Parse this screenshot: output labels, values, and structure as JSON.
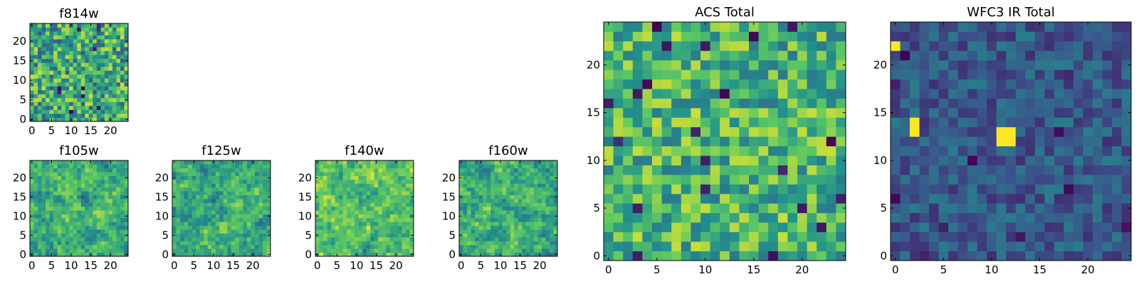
{
  "figure": {
    "colormap_colors": [
      "#440154",
      "#3b528b",
      "#21918c",
      "#5ec962",
      "#fde725"
    ]
  },
  "chart_data": [
    {
      "type": "heatmap",
      "title": "f814w",
      "xlim": [
        -0.5,
        24.5
      ],
      "ylim": [
        -0.5,
        24.5
      ],
      "xticks": [
        0,
        5,
        10,
        15,
        20
      ],
      "yticks": [
        0,
        5,
        10,
        15,
        20
      ],
      "grid": false,
      "values_description_free": true,
      "rows": 25,
      "cols": 25,
      "seed": 11,
      "mean": 0.6,
      "spread": 0.32,
      "smooth": 0
    },
    {
      "type": "heatmap",
      "title": "f105w",
      "xlim": [
        -0.5,
        24.5
      ],
      "ylim": [
        -0.5,
        24.5
      ],
      "xticks": [
        0,
        5,
        10,
        15,
        20
      ],
      "yticks": [
        0,
        5,
        10,
        15,
        20
      ],
      "grid": false,
      "rows": 25,
      "cols": 25,
      "seed": 23,
      "mean": 0.65,
      "spread": 0.3,
      "smooth": 1
    },
    {
      "type": "heatmap",
      "title": "f125w",
      "xlim": [
        -0.5,
        24.5
      ],
      "ylim": [
        -0.5,
        24.5
      ],
      "xticks": [
        0,
        5,
        10,
        15,
        20
      ],
      "yticks": [
        0,
        5,
        10,
        15,
        20
      ],
      "grid": false,
      "rows": 25,
      "cols": 25,
      "seed": 37,
      "mean": 0.62,
      "spread": 0.32,
      "smooth": 1
    },
    {
      "type": "heatmap",
      "title": "f140w",
      "xlim": [
        -0.5,
        24.5
      ],
      "ylim": [
        -0.5,
        24.5
      ],
      "xticks": [
        0,
        5,
        10,
        15,
        20
      ],
      "yticks": [
        0,
        5,
        10,
        15,
        20
      ],
      "grid": false,
      "rows": 25,
      "cols": 25,
      "seed": 41,
      "mean": 0.72,
      "spread": 0.28,
      "smooth": 1
    },
    {
      "type": "heatmap",
      "title": "f160w",
      "xlim": [
        -0.5,
        24.5
      ],
      "ylim": [
        -0.5,
        24.5
      ],
      "xticks": [
        0,
        5,
        10,
        15,
        20
      ],
      "yticks": [
        0,
        5,
        10,
        15,
        20
      ],
      "grid": false,
      "rows": 25,
      "cols": 25,
      "seed": 53,
      "mean": 0.64,
      "spread": 0.32,
      "smooth": 1
    },
    {
      "type": "heatmap",
      "title": "ACS Total",
      "xlim": [
        -0.5,
        24.5
      ],
      "ylim": [
        -0.5,
        24.5
      ],
      "xticks": [
        0,
        5,
        10,
        15,
        20
      ],
      "yticks": [
        0,
        5,
        10,
        15,
        20
      ],
      "grid": false,
      "rows": 25,
      "cols": 25,
      "seed": 67,
      "mean": 0.66,
      "spread": 0.26,
      "smooth": 0
    },
    {
      "type": "heatmap",
      "title": "WFC3 IR Total",
      "xlim": [
        -0.5,
        24.5
      ],
      "ylim": [
        -0.5,
        24.5
      ],
      "xticks": [
        0,
        5,
        10,
        15,
        20
      ],
      "yticks": [
        0,
        5,
        10,
        15,
        20
      ],
      "grid": false,
      "rows": 25,
      "cols": 25,
      "seed": 79,
      "mean": 0.28,
      "spread": 0.14,
      "smooth": 0,
      "hotspots": [
        {
          "col": 0,
          "row": 22,
          "value": 1.0
        },
        {
          "col": 2,
          "row": 13,
          "value": 1.0
        },
        {
          "col": 2,
          "row": 14,
          "value": 1.0
        },
        {
          "col": 11,
          "row": 12,
          "value": 1.0
        },
        {
          "col": 12,
          "row": 12,
          "value": 1.0
        },
        {
          "col": 11,
          "row": 13,
          "value": 1.0
        },
        {
          "col": 12,
          "row": 13,
          "value": 1.0
        }
      ]
    }
  ]
}
